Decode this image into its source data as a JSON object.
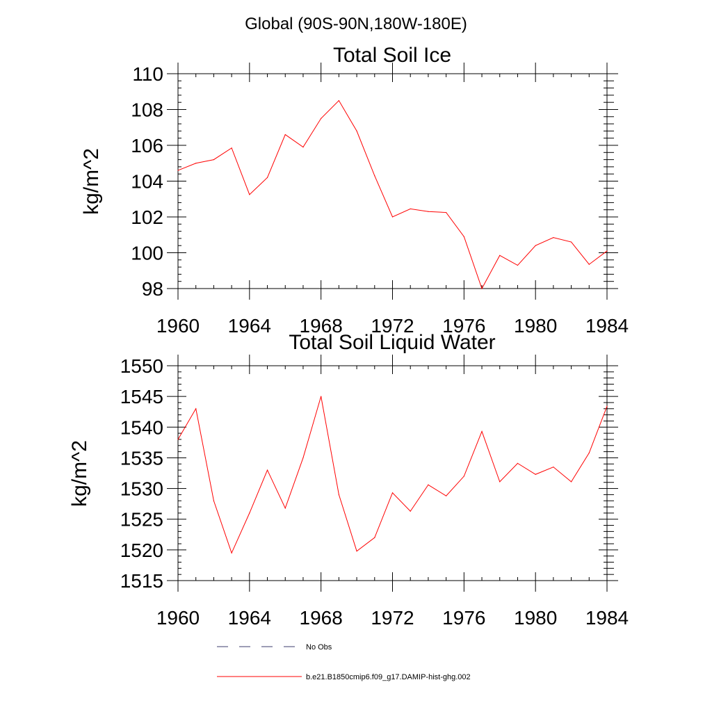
{
  "figure": {
    "region_title": "Global (90S-90N,180W-180E)"
  },
  "chart_data": [
    {
      "type": "line",
      "title": "Total Soil Ice",
      "xlabel": "",
      "ylabel": "kg/m^2",
      "xlim": [
        1960,
        1984
      ],
      "ylim": [
        98,
        110
      ],
      "x_ticks": [
        1960,
        1964,
        1968,
        1972,
        1976,
        1980,
        1984
      ],
      "y_ticks": [
        98,
        100,
        102,
        104,
        106,
        108,
        110
      ],
      "grid": false,
      "color": "#ff0000",
      "x": [
        1960,
        1961,
        1962,
        1963,
        1964,
        1965,
        1966,
        1967,
        1968,
        1969,
        1970,
        1971,
        1972,
        1973,
        1974,
        1975,
        1976,
        1977,
        1978,
        1979,
        1980,
        1981,
        1982,
        1983,
        1984
      ],
      "y": [
        104.6,
        105.0,
        105.2,
        105.85,
        103.25,
        104.2,
        106.6,
        105.9,
        107.5,
        108.5,
        106.8,
        104.3,
        102.0,
        102.45,
        102.3,
        102.25,
        100.9,
        98.0,
        99.85,
        99.3,
        100.4,
        100.85,
        100.6,
        99.35,
        100.1
      ]
    },
    {
      "type": "line",
      "title": "Total Soil Liquid Water",
      "xlabel": "",
      "ylabel": "kg/m^2",
      "xlim": [
        1960,
        1984
      ],
      "ylim": [
        1515,
        1550
      ],
      "x_ticks": [
        1960,
        1964,
        1968,
        1972,
        1976,
        1980,
        1984
      ],
      "y_ticks": [
        1515,
        1520,
        1525,
        1530,
        1535,
        1540,
        1545,
        1550
      ],
      "grid": false,
      "color": "#ff0000",
      "x": [
        1960,
        1961,
        1962,
        1963,
        1964,
        1965,
        1966,
        1967,
        1968,
        1969,
        1970,
        1971,
        1972,
        1973,
        1974,
        1975,
        1976,
        1977,
        1978,
        1979,
        1980,
        1981,
        1982,
        1983,
        1984
      ],
      "y": [
        1538.0,
        1543.0,
        1528.0,
        1519.5,
        1526.0,
        1533.0,
        1526.8,
        1535.0,
        1545.0,
        1529.0,
        1519.8,
        1522.0,
        1529.3,
        1526.3,
        1530.6,
        1528.8,
        1532.0,
        1539.3,
        1531.1,
        1534.1,
        1532.3,
        1533.5,
        1531.1,
        1535.8,
        1543.4
      ]
    }
  ],
  "legend": {
    "placement": "bottom",
    "items": [
      {
        "label": "No Obs",
        "style": "dashed",
        "color": "#3b3b6e"
      },
      {
        "label": "b.e21.B1850cmip6.f09_g17.DAMIP-hist-ghg.002",
        "style": "solid",
        "color": "#ff0000"
      }
    ]
  }
}
